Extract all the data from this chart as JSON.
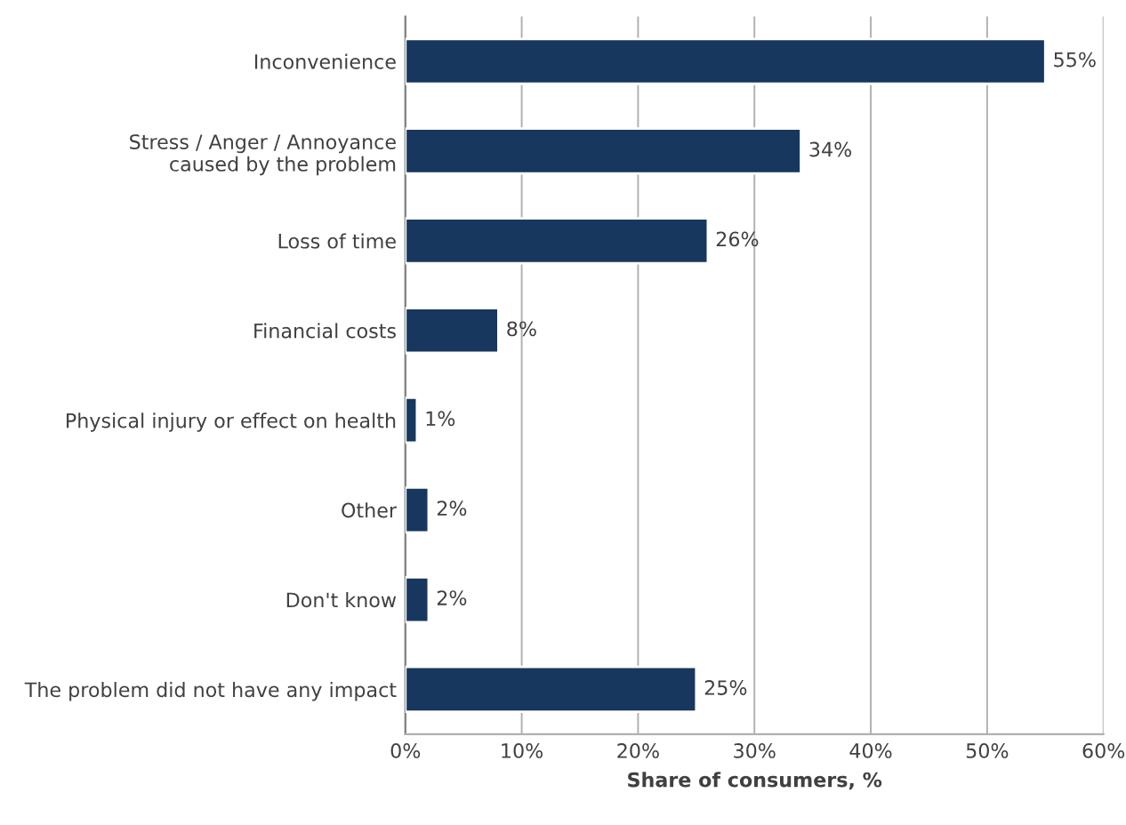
{
  "chart_data": {
    "type": "bar",
    "orientation": "horizontal",
    "categories": [
      "Inconvenience",
      "Stress / Anger / Annoyance\ncaused by the problem",
      "Loss of time",
      "Financial costs",
      "Physical injury or effect on health",
      "Other",
      "Don't know",
      "The problem did not have any impact"
    ],
    "values": [
      55,
      34,
      26,
      8,
      1,
      2,
      2,
      25
    ],
    "value_labels": [
      "55%",
      "34%",
      "26%",
      "8%",
      "1%",
      "2%",
      "2%",
      "25%"
    ],
    "color": "#17375e",
    "xlim": [
      0,
      60
    ],
    "xticks": [
      {
        "value": 0,
        "label": "0%"
      },
      {
        "value": 10,
        "label": "10%"
      },
      {
        "value": 20,
        "label": "20%"
      },
      {
        "value": 30,
        "label": "30%"
      },
      {
        "value": 40,
        "label": "40%"
      },
      {
        "value": 50,
        "label": "50%"
      },
      {
        "value": 60,
        "label": "60%"
      }
    ],
    "xlabel": "Share of consumers, %",
    "grid": "x",
    "legend": false
  }
}
